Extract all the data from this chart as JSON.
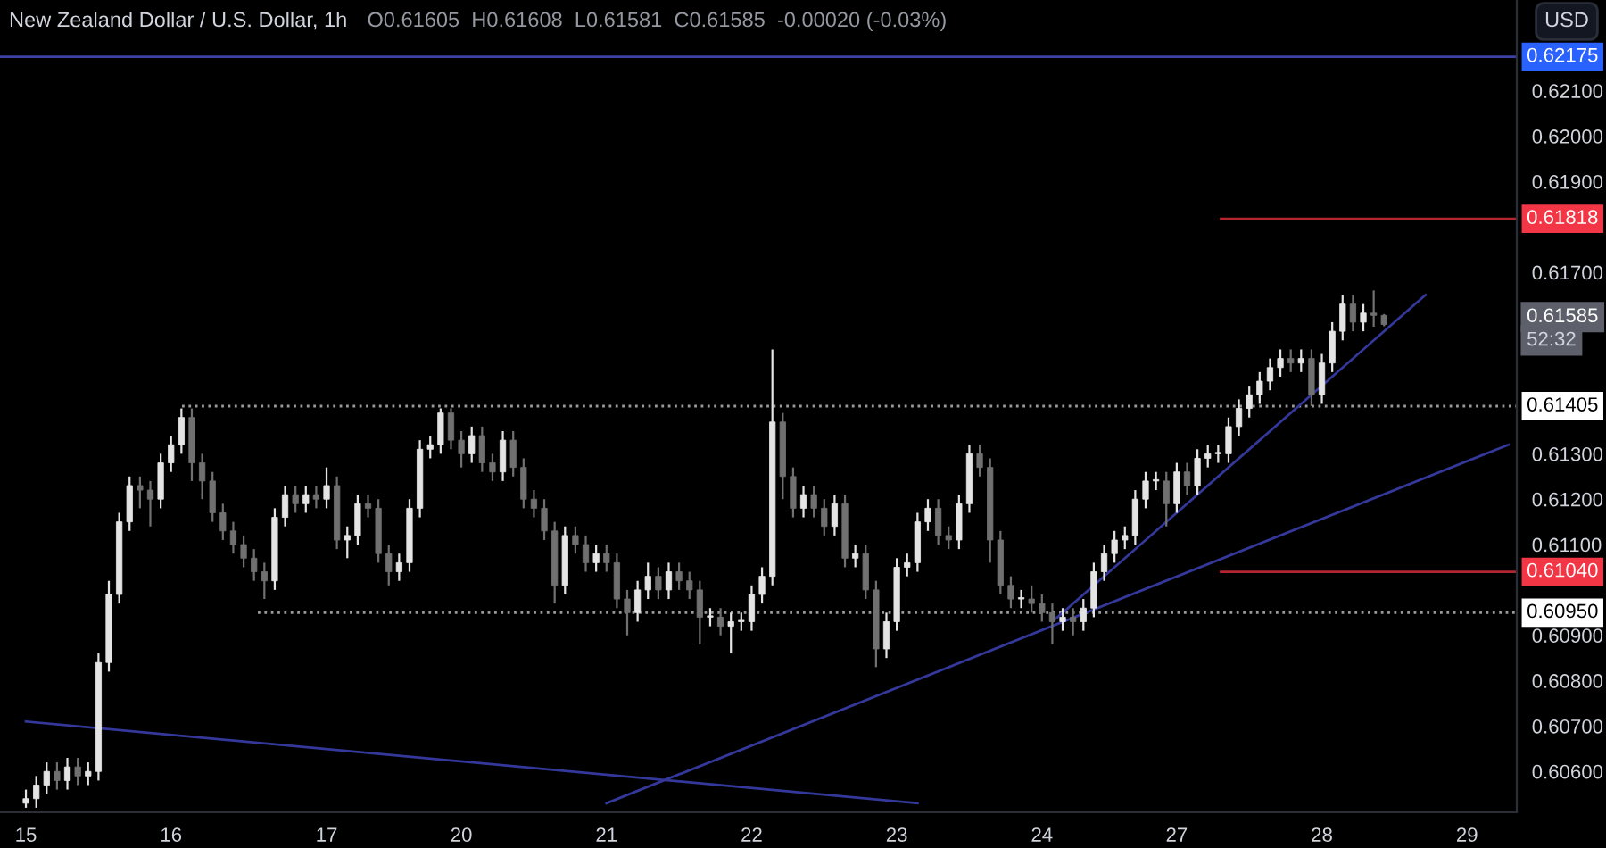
{
  "chart_data": {
    "type": "candlestick",
    "title": "New Zealand Dollar / U.S. Dollar, 1h",
    "subtitle": "O0.61605  H0.61608  L0.61581  C0.61585  -0.00020 (-0.03%)",
    "ylabel": "USD",
    "categories": [
      "15",
      null,
      null,
      null,
      null,
      null,
      null,
      null,
      null,
      null,
      null,
      null,
      null,
      null,
      "16",
      null,
      null,
      null,
      null,
      null,
      null,
      null,
      null,
      null,
      null,
      null,
      null,
      null,
      null,
      "17",
      null,
      null,
      null,
      null,
      null,
      null,
      null,
      null,
      null,
      null,
      null,
      null,
      "20",
      null,
      null,
      null,
      null,
      null,
      null,
      null,
      null,
      null,
      null,
      null,
      null,
      null,
      "21",
      null,
      null,
      null,
      null,
      null,
      null,
      null,
      null,
      null,
      null,
      null,
      null,
      null,
      "22",
      null,
      null,
      null,
      null,
      null,
      null,
      null,
      null,
      null,
      null,
      null,
      null,
      null,
      "23",
      null,
      null,
      null,
      null,
      null,
      null,
      null,
      null,
      null,
      null,
      null,
      null,
      null,
      "24",
      null,
      null,
      null,
      null,
      null,
      null,
      null,
      null,
      null,
      null,
      null,
      null,
      "27",
      null,
      null,
      null,
      null,
      null,
      null,
      null,
      null,
      null,
      null,
      null,
      null,
      null,
      "28",
      null,
      null,
      null,
      null,
      null,
      null,
      null,
      null,
      null,
      null,
      null,
      null,
      null,
      "29",
      null,
      null,
      null,
      null
    ],
    "colors": [
      "#e4e4e4",
      "#e4e4e4",
      "#e4e4e4",
      "#707070",
      "#e4e4e4",
      "#707070",
      "#e4e4e4",
      "#e4e4e4",
      "#e4e4e4",
      "#e4e4e4",
      "#e4e4e4",
      "#707070",
      "#707070",
      "#e4e4e4",
      "#e4e4e4",
      "#e4e4e4",
      "#707070",
      "#707070",
      "#707070",
      "#707070",
      "#707070",
      "#707070",
      "#707070",
      "#707070",
      "#e4e4e4",
      "#e4e4e4",
      "#707070",
      "#e4e4e4",
      "#707070",
      "#e4e4e4",
      "#707070",
      "#e4e4e4",
      "#e4e4e4",
      "#707070",
      "#707070",
      "#707070",
      "#e4e4e4",
      "#e4e4e4",
      "#e4e4e4",
      "#e4e4e4",
      "#e4e4e4",
      "#707070",
      "#707070",
      "#e4e4e4",
      "#707070",
      "#707070",
      "#e4e4e4",
      "#707070",
      "#707070",
      "#707070",
      "#707070",
      "#707070",
      "#e4e4e4",
      "#707070",
      "#707070",
      "#e4e4e4",
      "#707070",
      "#707070",
      "#707070",
      "#e4e4e4",
      "#e4e4e4",
      "#707070",
      "#e4e4e4",
      "#707070",
      "#707070",
      "#707070",
      "#e4e4e4",
      "#707070",
      "#e4e4e4",
      "#e4e4e4",
      "#e4e4e4",
      "#e4e4e4",
      "#e4e4e4",
      "#707070",
      "#707070",
      "#e4e4e4",
      "#707070",
      "#707070",
      "#e4e4e4",
      "#707070",
      "#e4e4e4",
      "#707070",
      "#707070",
      "#e4e4e4",
      "#e4e4e4",
      "#e4e4e4",
      "#e4e4e4",
      "#e4e4e4",
      "#707070",
      "#707070",
      "#e4e4e4",
      "#e4e4e4",
      "#707070",
      "#707070",
      "#707070",
      "#707070",
      "#e4e4e4",
      "#707070",
      "#707070",
      "#707070",
      "#e4e4e4",
      "#707070",
      "#e4e4e4",
      "#e4e4e4",
      "#e4e4e4",
      "#e4e4e4",
      "#e4e4e4",
      "#e4e4e4",
      "#e4e4e4",
      "#e4e4e4",
      "#707070",
      "#e4e4e4",
      "#707070",
      "#e4e4e4",
      "#e4e4e4",
      "#e4e4e4",
      "#e4e4e4",
      "#e4e4e4",
      "#e4e4e4",
      "#e4e4e4",
      "#e4e4e4",
      "#e4e4e4",
      "#707070",
      "#e4e4e4",
      "#707070",
      "#e4e4e4",
      "#e4e4e4",
      "#e4e4e4",
      "#707070",
      "#e4e4e4",
      "#707070",
      "#707070",
      null,
      null,
      null,
      null,
      null,
      null,
      null,
      null,
      null,
      null,
      null,
      null
    ],
    "ohlc": [
      [
        0.6053,
        0.6056,
        0.6052,
        0.6054
      ],
      [
        0.6054,
        0.6059,
        0.6052,
        0.6057
      ],
      [
        0.6057,
        0.6062,
        0.6055,
        0.606
      ],
      [
        0.606,
        0.6062,
        0.6056,
        0.6058
      ],
      [
        0.6058,
        0.6063,
        0.6056,
        0.6061
      ],
      [
        0.6061,
        0.6063,
        0.6057,
        0.6059
      ],
      [
        0.6059,
        0.6062,
        0.6057,
        0.606
      ],
      [
        0.606,
        0.6086,
        0.6058,
        0.6084
      ],
      [
        0.6084,
        0.6102,
        0.6082,
        0.6099
      ],
      [
        0.6099,
        0.6117,
        0.6097,
        0.6115
      ],
      [
        0.6115,
        0.6125,
        0.6113,
        0.6123
      ],
      [
        0.6123,
        0.6125,
        0.6118,
        0.6122
      ],
      [
        0.6122,
        0.6124,
        0.6114,
        0.612
      ],
      [
        0.612,
        0.613,
        0.6118,
        0.6128
      ],
      [
        0.6128,
        0.6134,
        0.6126,
        0.6132
      ],
      [
        0.6132,
        0.614,
        0.613,
        0.6138
      ],
      [
        0.6138,
        0.614,
        0.6124,
        0.6128
      ],
      [
        0.6128,
        0.613,
        0.612,
        0.6124
      ],
      [
        0.6124,
        0.6126,
        0.6115,
        0.6117
      ],
      [
        0.6117,
        0.6119,
        0.6111,
        0.6113
      ],
      [
        0.6113,
        0.6115,
        0.6108,
        0.611
      ],
      [
        0.611,
        0.6112,
        0.6105,
        0.6107
      ],
      [
        0.6107,
        0.6109,
        0.6102,
        0.6104
      ],
      [
        0.6104,
        0.6106,
        0.6098,
        0.6102
      ],
      [
        0.6102,
        0.6118,
        0.61,
        0.6116
      ],
      [
        0.6116,
        0.6123,
        0.6114,
        0.6121
      ],
      [
        0.6121,
        0.6123,
        0.6117,
        0.6119
      ],
      [
        0.6119,
        0.6123,
        0.6117,
        0.6121
      ],
      [
        0.6121,
        0.6123,
        0.6118,
        0.612
      ],
      [
        0.612,
        0.6127,
        0.6118,
        0.6123
      ],
      [
        0.6123,
        0.6125,
        0.6109,
        0.6111
      ],
      [
        0.6111,
        0.6114,
        0.6107,
        0.6112
      ],
      [
        0.6112,
        0.6121,
        0.611,
        0.6119
      ],
      [
        0.6119,
        0.6121,
        0.6116,
        0.6118
      ],
      [
        0.6118,
        0.612,
        0.6106,
        0.6108
      ],
      [
        0.6108,
        0.611,
        0.6101,
        0.6104
      ],
      [
        0.6104,
        0.6108,
        0.6102,
        0.6106
      ],
      [
        0.6106,
        0.612,
        0.6104,
        0.6118
      ],
      [
        0.6118,
        0.6133,
        0.6116,
        0.6131
      ],
      [
        0.6131,
        0.6134,
        0.6129,
        0.6132
      ],
      [
        0.6132,
        0.614,
        0.613,
        0.6139
      ],
      [
        0.6139,
        0.614,
        0.6131,
        0.6133
      ],
      [
        0.6133,
        0.6135,
        0.6127,
        0.613
      ],
      [
        0.613,
        0.6136,
        0.6128,
        0.6134
      ],
      [
        0.6134,
        0.6136,
        0.6126,
        0.6128
      ],
      [
        0.6128,
        0.613,
        0.6124,
        0.6126
      ],
      [
        0.6126,
        0.6135,
        0.6124,
        0.6133
      ],
      [
        0.6133,
        0.6135,
        0.6125,
        0.6127
      ],
      [
        0.6127,
        0.6129,
        0.6118,
        0.612
      ],
      [
        0.612,
        0.6122,
        0.6116,
        0.6118
      ],
      [
        0.6118,
        0.612,
        0.6111,
        0.6113
      ],
      [
        0.6113,
        0.6115,
        0.6097,
        0.6101
      ],
      [
        0.6101,
        0.6114,
        0.6099,
        0.6112
      ],
      [
        0.6112,
        0.6114,
        0.6108,
        0.611
      ],
      [
        0.611,
        0.6112,
        0.6104,
        0.6106
      ],
      [
        0.6106,
        0.611,
        0.6104,
        0.6108
      ],
      [
        0.6108,
        0.611,
        0.6104,
        0.6106
      ],
      [
        0.6106,
        0.6108,
        0.6096,
        0.6098
      ],
      [
        0.6098,
        0.61,
        0.609,
        0.6095
      ],
      [
        0.6095,
        0.6102,
        0.6093,
        0.61
      ],
      [
        0.61,
        0.6106,
        0.6098,
        0.6103
      ],
      [
        0.6103,
        0.6105,
        0.6098,
        0.61
      ],
      [
        0.61,
        0.6106,
        0.6098,
        0.6104
      ],
      [
        0.6104,
        0.6106,
        0.61,
        0.6102
      ],
      [
        0.6102,
        0.6104,
        0.6098,
        0.61
      ],
      [
        0.61,
        0.6102,
        0.6088,
        0.6094
      ],
      [
        0.6094,
        0.6096,
        0.6092,
        0.6094
      ],
      [
        0.6094,
        0.6096,
        0.609,
        0.6092
      ],
      [
        0.6092,
        0.6095,
        0.6086,
        0.6093
      ],
      [
        0.6093,
        0.6095,
        0.6091,
        0.6093
      ],
      [
        0.6093,
        0.6101,
        0.6091,
        0.6099
      ],
      [
        0.6099,
        0.6105,
        0.6097,
        0.6103
      ],
      [
        0.6103,
        0.6153,
        0.6101,
        0.6137
      ],
      [
        0.6137,
        0.6139,
        0.612,
        0.6125
      ],
      [
        0.6125,
        0.6127,
        0.6116,
        0.6118
      ],
      [
        0.6118,
        0.6123,
        0.6116,
        0.6121
      ],
      [
        0.6121,
        0.6123,
        0.6116,
        0.6118
      ],
      [
        0.6118,
        0.612,
        0.6112,
        0.6114
      ],
      [
        0.6114,
        0.6121,
        0.6112,
        0.6119
      ],
      [
        0.6119,
        0.6121,
        0.6105,
        0.6107
      ],
      [
        0.6107,
        0.611,
        0.6105,
        0.6108
      ],
      [
        0.6108,
        0.611,
        0.6098,
        0.61
      ],
      [
        0.61,
        0.6102,
        0.6083,
        0.6087
      ],
      [
        0.6087,
        0.6095,
        0.6085,
        0.6093
      ],
      [
        0.6093,
        0.6107,
        0.6091,
        0.6105
      ],
      [
        0.6105,
        0.6108,
        0.6103,
        0.6106
      ],
      [
        0.6106,
        0.6117,
        0.6104,
        0.6115
      ],
      [
        0.6115,
        0.612,
        0.6113,
        0.6118
      ],
      [
        0.6118,
        0.612,
        0.611,
        0.6112
      ],
      [
        0.6112,
        0.6114,
        0.6109,
        0.6111
      ],
      [
        0.6111,
        0.6121,
        0.6109,
        0.6119
      ],
      [
        0.6119,
        0.6132,
        0.6117,
        0.613
      ],
      [
        0.613,
        0.6132,
        0.6125,
        0.6127
      ],
      [
        0.6127,
        0.6129,
        0.6106,
        0.6111
      ],
      [
        0.6111,
        0.6113,
        0.6099,
        0.6101
      ],
      [
        0.6101,
        0.6103,
        0.6096,
        0.6098
      ],
      [
        0.6098,
        0.61,
        0.6096,
        0.6098
      ],
      [
        0.6098,
        0.6101,
        0.6095,
        0.6097
      ],
      [
        0.6097,
        0.6099,
        0.6093,
        0.6095
      ],
      [
        0.6095,
        0.6097,
        0.6088,
        0.6093
      ],
      [
        0.6093,
        0.6096,
        0.6091,
        0.6094
      ],
      [
        0.6094,
        0.6096,
        0.609,
        0.6093
      ],
      [
        0.6093,
        0.6098,
        0.6091,
        0.6096
      ],
      [
        0.6096,
        0.6106,
        0.6094,
        0.6104
      ],
      [
        0.6104,
        0.611,
        0.6102,
        0.6108
      ],
      [
        0.6108,
        0.6113,
        0.6106,
        0.6111
      ],
      [
        0.6111,
        0.6114,
        0.6109,
        0.6112
      ],
      [
        0.6112,
        0.6122,
        0.611,
        0.612
      ],
      [
        0.612,
        0.6126,
        0.6118,
        0.6124
      ],
      [
        0.6124,
        0.6126,
        0.6122,
        0.6124
      ],
      [
        0.6124,
        0.6126,
        0.6114,
        0.6119
      ],
      [
        0.6119,
        0.6128,
        0.6117,
        0.6126
      ],
      [
        0.6126,
        0.6128,
        0.6121,
        0.6123
      ],
      [
        0.6123,
        0.6131,
        0.6121,
        0.6129
      ],
      [
        0.6129,
        0.6132,
        0.6127,
        0.613
      ],
      [
        0.613,
        0.6132,
        0.6128,
        0.613
      ],
      [
        0.613,
        0.6138,
        0.6128,
        0.6136
      ],
      [
        0.6136,
        0.6142,
        0.6134,
        0.614
      ],
      [
        0.614,
        0.6145,
        0.6138,
        0.6143
      ],
      [
        0.6143,
        0.6148,
        0.6141,
        0.6146
      ],
      [
        0.6146,
        0.6151,
        0.6144,
        0.6149
      ],
      [
        0.6149,
        0.6153,
        0.6147,
        0.6151
      ],
      [
        0.6151,
        0.6153,
        0.6148,
        0.615
      ],
      [
        0.615,
        0.6153,
        0.6148,
        0.6151
      ],
      [
        0.6151,
        0.6153,
        0.61405,
        0.6143
      ],
      [
        0.6143,
        0.6152,
        0.6141,
        0.615
      ],
      [
        0.615,
        0.6159,
        0.6148,
        0.6157
      ],
      [
        0.6157,
        0.6165,
        0.6155,
        0.6163
      ],
      [
        0.6163,
        0.6165,
        0.6157,
        0.6159
      ],
      [
        0.6159,
        0.6163,
        0.6157,
        0.6161
      ],
      [
        0.6161,
        0.6166,
        0.6158,
        0.61605
      ],
      [
        0.61605,
        0.61608,
        0.61581,
        0.61585
      ],
      null,
      null,
      null,
      null,
      null,
      null,
      null,
      null,
      null,
      null,
      null,
      null
    ],
    "series": [
      {
        "type": "line",
        "color": "#34389a",
        "values": [
          0.6071,
          null,
          null,
          null,
          null,
          null,
          null,
          null,
          null,
          null,
          null,
          null,
          null,
          null,
          null,
          null,
          null,
          null,
          null,
          null,
          null,
          null,
          null,
          null,
          null,
          null,
          null,
          null,
          null,
          null,
          null,
          null,
          null,
          null,
          null,
          null,
          null,
          null,
          null,
          null,
          null,
          null,
          null,
          null,
          null,
          null,
          null,
          null,
          null,
          null,
          null,
          null,
          null,
          null,
          null,
          null,
          null,
          null,
          null,
          null,
          null,
          null,
          null,
          null,
          null,
          null,
          null,
          null,
          null,
          null,
          null,
          null,
          null,
          null,
          null,
          null,
          null,
          null,
          null,
          null,
          null,
          null,
          null,
          null,
          null,
          null,
          0.6053,
          null,
          null,
          null,
          null,
          null,
          null,
          null,
          null,
          null,
          null,
          null,
          null,
          null,
          null,
          null,
          null,
          null,
          null,
          null,
          null,
          null,
          null,
          null,
          null,
          null,
          null,
          null,
          null,
          null,
          null,
          null,
          null,
          null,
          null,
          null,
          null,
          null,
          null,
          null,
          null,
          null,
          null,
          null,
          null,
          null,
          null,
          null,
          null,
          null,
          null,
          null,
          null,
          null,
          null,
          null,
          null,
          null
        ]
      },
      {
        "type": "line",
        "color": "#34389a",
        "values": [
          null,
          null,
          null,
          null,
          null,
          null,
          null,
          null,
          null,
          null,
          null,
          null,
          null,
          null,
          null,
          null,
          null,
          null,
          null,
          null,
          null,
          null,
          null,
          null,
          null,
          null,
          null,
          null,
          null,
          null,
          null,
          null,
          null,
          null,
          null,
          null,
          null,
          null,
          null,
          null,
          null,
          null,
          null,
          null,
          null,
          null,
          null,
          null,
          null,
          null,
          null,
          null,
          null,
          null,
          null,
          null,
          0.6053,
          null,
          null,
          null,
          null,
          null,
          null,
          null,
          null,
          null,
          null,
          null,
          null,
          null,
          null,
          null,
          null,
          null,
          null,
          null,
          null,
          null,
          null,
          null,
          null,
          null,
          null,
          null,
          null,
          null,
          null,
          null,
          null,
          null,
          null,
          null,
          null,
          null,
          null,
          null,
          null,
          null,
          null,
          null,
          null,
          null,
          null,
          null,
          null,
          null,
          null,
          null,
          null,
          null,
          null,
          null,
          null,
          null,
          null,
          null,
          null,
          null,
          null,
          null,
          null,
          null,
          null,
          null,
          null,
          null,
          null,
          null,
          null,
          null,
          null,
          null,
          null,
          null,
          null,
          null,
          null,
          null,
          null,
          null,
          null,
          null,
          null,
          0.6132
        ]
      },
      {
        "type": "line",
        "color": "#34389a",
        "values": [
          null,
          null,
          null,
          null,
          null,
          null,
          null,
          null,
          null,
          null,
          null,
          null,
          null,
          null,
          null,
          null,
          null,
          null,
          null,
          null,
          null,
          null,
          null,
          null,
          null,
          null,
          null,
          null,
          null,
          null,
          null,
          null,
          null,
          null,
          null,
          null,
          null,
          null,
          null,
          null,
          null,
          null,
          null,
          null,
          null,
          null,
          null,
          null,
          null,
          null,
          null,
          null,
          null,
          null,
          null,
          null,
          null,
          null,
          null,
          null,
          null,
          null,
          null,
          null,
          null,
          null,
          null,
          null,
          null,
          null,
          null,
          null,
          null,
          null,
          null,
          null,
          null,
          null,
          null,
          null,
          null,
          null,
          null,
          null,
          null,
          null,
          null,
          null,
          null,
          null,
          null,
          null,
          null,
          null,
          null,
          null,
          null,
          null,
          null,
          0.6093,
          null,
          null,
          null,
          null,
          null,
          null,
          null,
          null,
          null,
          null,
          null,
          null,
          null,
          null,
          null,
          null,
          null,
          null,
          null,
          null,
          null,
          null,
          null,
          null,
          null,
          null,
          null,
          null,
          null,
          null,
          null,
          null,
          null,
          null,
          null,
          0.6165,
          null,
          null,
          null,
          null,
          null,
          null,
          null,
          null
        ]
      }
    ],
    "ref_lines": [
      {
        "axis": "y",
        "value": 0.62175,
        "label": "0.62175",
        "color": "#3d42a6",
        "line_style": "solid"
      },
      {
        "axis": "y",
        "value": 0.61818,
        "label": "0.61818",
        "color": "#b3262f",
        "line_style": "solid"
      },
      {
        "axis": "y",
        "value": 0.61405,
        "label": "0.61405",
        "color": "#9a9a9a",
        "line_style": "dotted"
      },
      {
        "axis": "y",
        "value": 0.6104,
        "label": "0.61040",
        "color": "#b3262f",
        "line_style": "solid"
      },
      {
        "axis": "y",
        "value": 0.6095,
        "label": "0.60950",
        "color": "#9a9a9a",
        "line_style": "dotted"
      }
    ],
    "annotations": [
      "0.61585",
      "52:32"
    ],
    "ylim": [
      0.6051,
      0.623
    ],
    "yticks": [
      {
        "value": 0.606,
        "label": "0.60600"
      },
      {
        "value": 0.607,
        "label": "0.60700"
      },
      {
        "value": 0.608,
        "label": "0.60800"
      },
      {
        "value": 0.609,
        "label": "0.60900"
      },
      {
        "value": 0.611,
        "label": "0.61100"
      },
      {
        "value": 0.612,
        "label": "0.61200"
      },
      {
        "value": 0.613,
        "label": "0.61300"
      },
      {
        "value": 0.617,
        "label": "0.61700"
      },
      {
        "value": 0.619,
        "label": "0.61900"
      },
      {
        "value": 0.62,
        "label": "0.62000"
      },
      {
        "value": 0.621,
        "label": "0.62100"
      }
    ],
    "grid": false
  }
}
